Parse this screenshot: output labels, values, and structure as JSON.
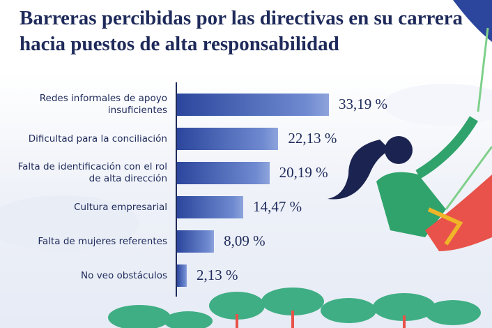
{
  "chart_data": {
    "type": "bar",
    "orientation": "horizontal",
    "title": "Barreras percibidas por las directivas en su carrera hacia puestos de alta responsabilidad",
    "categories": [
      "Redes informales de apoyo insuficientes",
      "Dificultad para la conciliación",
      "Falta de identificación con el rol de alta dirección",
      "Cultura empresarial",
      "Falta de mujeres referentes",
      "No veo obstáculos"
    ],
    "values": [
      33.19,
      22.13,
      20.19,
      14.47,
      8.09,
      2.13
    ],
    "value_labels": [
      "33,19 %",
      "22,13 %",
      "20,19 %",
      "14,47 %",
      "8,09 %",
      "2,13 %"
    ]
  }
}
